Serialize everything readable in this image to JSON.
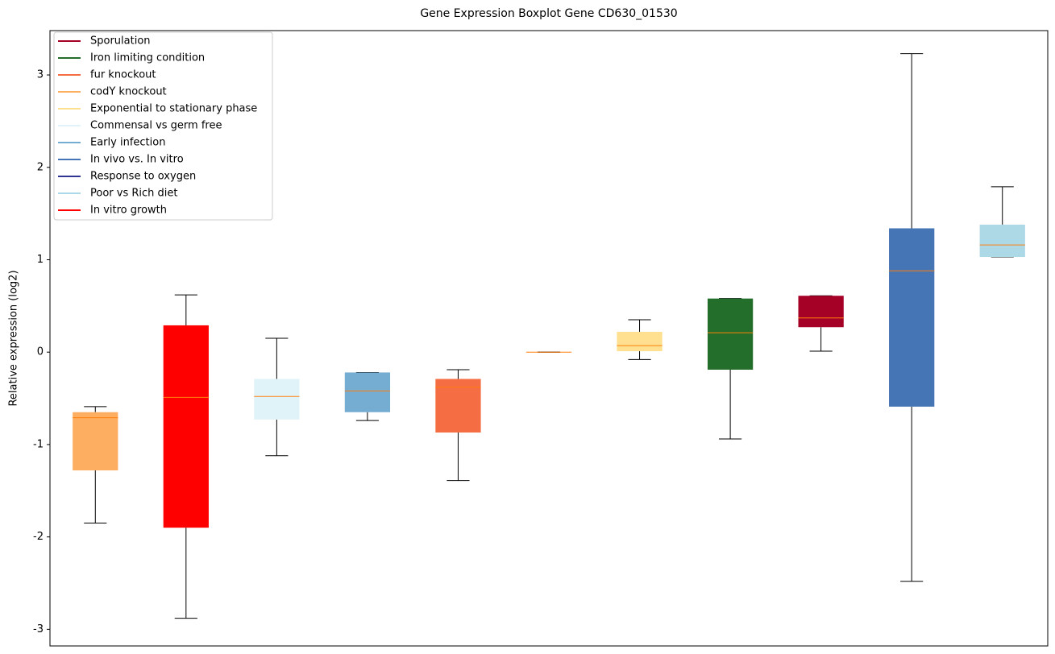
{
  "chart_data": {
    "type": "box",
    "title": "Gene Expression Boxplot Gene CD630_01530",
    "ylabel": "Relative expression (log2)",
    "xlim": [
      0.5,
      11.5
    ],
    "ylim": [
      -3.18,
      3.48
    ],
    "yticks": [
      -3,
      -2,
      -1,
      0,
      1,
      2,
      3
    ],
    "legend": "upper left",
    "median_color": "#ff7f0e",
    "series": [
      {
        "name": "Sporulation",
        "color": "#a50026",
        "x": 9,
        "whislo": 0.01,
        "q1": 0.27,
        "med": 0.37,
        "q3": 0.61,
        "whishi": 0.61
      },
      {
        "name": "Iron limiting condition",
        "color": "#226e2a",
        "x": 8,
        "whislo": -0.94,
        "q1": -0.19,
        "med": 0.21,
        "q3": 0.58,
        "whishi": 0.58
      },
      {
        "name": "fur knockout",
        "color": "#f46d43",
        "x": 5,
        "whislo": -1.39,
        "q1": -0.87,
        "med": -0.38,
        "q3": -0.29,
        "whishi": -0.19
      },
      {
        "name": "codY knockout",
        "color": "#fdae61",
        "x": 1,
        "whislo": -1.85,
        "q1": -1.28,
        "med": -0.71,
        "q3": -0.65,
        "whishi": -0.59
      },
      {
        "name": "Exponential to stationary phase",
        "color": "#fee090",
        "x": 7,
        "whislo": -0.08,
        "q1": 0.01,
        "med": 0.07,
        "q3": 0.22,
        "whishi": 0.35
      },
      {
        "name": "Commensal vs germ free",
        "color": "#e0f3f8",
        "x": 3,
        "whislo": -1.12,
        "q1": -0.73,
        "med": -0.48,
        "q3": -0.29,
        "whishi": 0.15
      },
      {
        "name": "Early infection",
        "color": "#74add1",
        "x": 4,
        "whislo": -0.74,
        "q1": -0.65,
        "med": -0.42,
        "q3": -0.22,
        "whishi": -0.22
      },
      {
        "name": "In vivo vs. In vitro",
        "color": "#4575b4",
        "x": 10,
        "whislo": -2.48,
        "q1": -0.59,
        "med": 0.88,
        "q3": 1.34,
        "whishi": 3.23
      },
      {
        "name": "Response to oxygen",
        "color": "#313695",
        "x": 6,
        "whislo": 0,
        "q1": 0,
        "med": 0,
        "q3": 0,
        "whishi": 0
      },
      {
        "name": "Poor vs Rich diet",
        "color": "#add8e6",
        "x": 11,
        "whislo": 1.03,
        "q1": 1.03,
        "med": 1.16,
        "q3": 1.38,
        "whishi": 1.79
      },
      {
        "name": "In vitro growth",
        "color": "#ff0000",
        "x": 2,
        "whislo": -2.88,
        "q1": -1.9,
        "med": -0.49,
        "q3": 0.29,
        "whishi": 0.62
      }
    ]
  }
}
